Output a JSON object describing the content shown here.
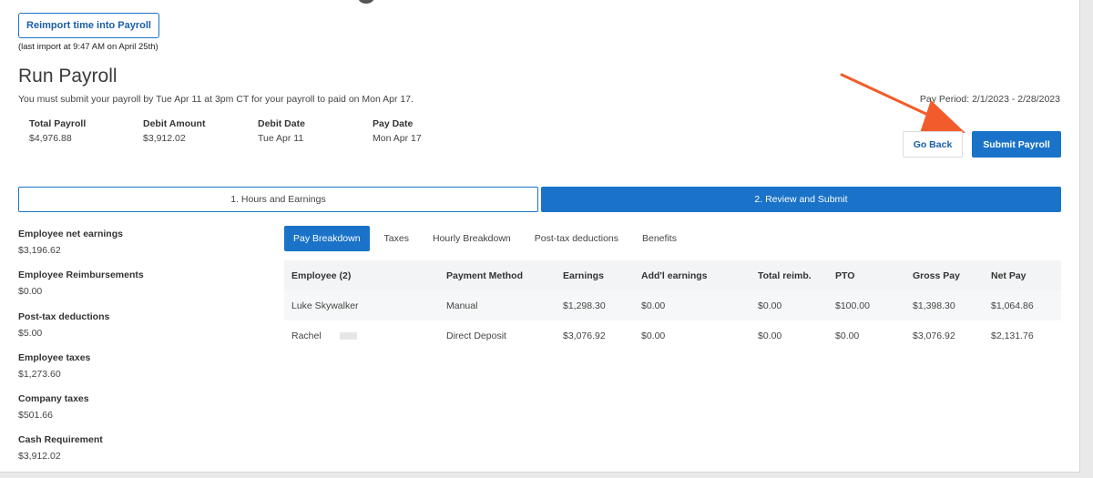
{
  "reimport": {
    "button_label": "Reimport time into Payroll",
    "note": "(last import at 9:47 AM on April 25th)"
  },
  "header": {
    "title": "Run Payroll",
    "deadline": "You must submit your payroll by Tue Apr 11 at 3pm CT for your payroll to paid on Mon Apr 17.",
    "pay_period": "Pay Period: 2/1/2023 - 2/28/2023"
  },
  "summary": [
    {
      "label": "Total Payroll",
      "value": "$4,976.88"
    },
    {
      "label": "Debit Amount",
      "value": "$3,912.02"
    },
    {
      "label": "Debit Date",
      "value": "Tue Apr 11"
    },
    {
      "label": "Pay Date",
      "value": "Mon Apr 17"
    }
  ],
  "actions": {
    "go_back": "Go Back",
    "submit": "Submit Payroll"
  },
  "steps": [
    {
      "label": "1. Hours and Earnings",
      "active": false
    },
    {
      "label": "2. Review and Submit",
      "active": true
    }
  ],
  "sidebar": [
    {
      "label": "Employee net earnings",
      "value": "$3,196.62"
    },
    {
      "label": "Employee Reimbursements",
      "value": "$0.00"
    },
    {
      "label": "Post-tax deductions",
      "value": "$5.00"
    },
    {
      "label": "Employee taxes",
      "value": "$1,273.60"
    },
    {
      "label": "Company taxes",
      "value": "$501.66"
    },
    {
      "label": "Cash Requirement",
      "value": "$3,912.02"
    }
  ],
  "tabs": [
    "Pay Breakdown",
    "Taxes",
    "Hourly Breakdown",
    "Post-tax deductions",
    "Benefits"
  ],
  "table": {
    "headers": [
      "Employee (2)",
      "Payment Method",
      "Earnings",
      "Add'l earnings",
      "Total reimb.",
      "PTO",
      "Gross Pay",
      "Net Pay"
    ],
    "rows": [
      [
        "Luke Skywalker",
        "Manual",
        "$1,298.30",
        "$0.00",
        "$0.00",
        "$100.00",
        "$1,398.30",
        "$1,064.86"
      ],
      [
        "Rachel",
        "Direct Deposit",
        "$3,076.92",
        "$0.00",
        "$0.00",
        "$0.00",
        "$3,076.92",
        "$2,131.76"
      ]
    ]
  },
  "colors": {
    "accent": "#1a73c8",
    "arrow": "#f25c2b"
  }
}
